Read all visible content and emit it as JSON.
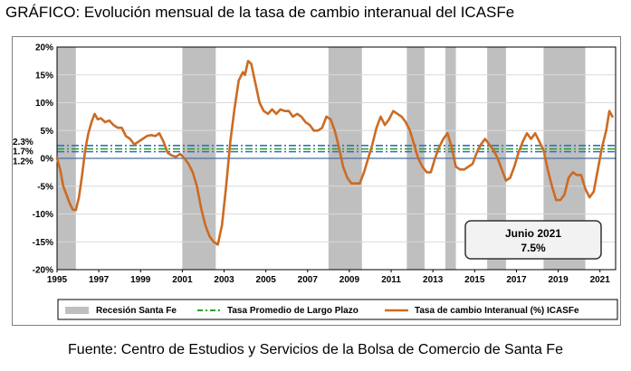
{
  "title": "GRÁFICO: Evolución mensual de la tasa de cambio interanual del ICASFe",
  "source": "Fuente: Centro de Estudios y Servicios de la Bolsa de Comercio de Santa Fe",
  "colors": {
    "series": "#cc6b22",
    "recession": "#bfbfbf",
    "avg_blue": "#2e6fcb",
    "avg_green": "#2ca02c",
    "zero_line": "#4a6fa5"
  },
  "chart_data": {
    "type": "line",
    "title": "",
    "xlabel": "",
    "ylabel": "",
    "xlim": [
      1995.0,
      2021.75
    ],
    "ylim": [
      -20,
      20
    ],
    "y_ticks": [
      20,
      15,
      10,
      5,
      0,
      -5,
      -10,
      -15,
      -20
    ],
    "y_tick_labels": [
      "20%",
      "15%",
      "10%",
      "5%",
      "0%",
      "-5%",
      "-10%",
      "-15%",
      "-20%"
    ],
    "x_ticks": [
      1995,
      1997,
      1999,
      2001,
      2003,
      2005,
      2007,
      2009,
      2011,
      2013,
      2015,
      2017,
      2019,
      2021
    ],
    "x_tick_labels": [
      "1995",
      "1997",
      "1999",
      "2001",
      "2003",
      "2005",
      "2007",
      "2009",
      "2011",
      "2013",
      "2015",
      "2017",
      "2019",
      "2021"
    ],
    "reference_labels": [
      "2.3%",
      "1.7%",
      "1.2%"
    ],
    "reference_lines": [
      2.3,
      1.7,
      1.2
    ],
    "recessions": [
      [
        1995.0,
        1995.9
      ],
      [
        2001.0,
        2002.6
      ],
      [
        2008.0,
        2009.6
      ],
      [
        2011.75,
        2012.6
      ],
      [
        2013.6,
        2014.1
      ],
      [
        2015.6,
        2016.5
      ],
      [
        2018.3,
        2020.3
      ]
    ],
    "series": [
      {
        "name": "Tasa de cambio interanual (%) ICASFe",
        "x": [
          1995.0,
          1995.15,
          1995.3,
          1995.45,
          1995.6,
          1995.75,
          1995.9,
          1996.05,
          1996.2,
          1996.35,
          1996.5,
          1996.65,
          1996.8,
          1996.95,
          1997.1,
          1997.3,
          1997.5,
          1997.7,
          1997.9,
          1998.1,
          1998.3,
          1998.5,
          1998.7,
          1998.9,
          1999.1,
          1999.3,
          1999.5,
          1999.7,
          1999.9,
          2000.1,
          2000.3,
          2000.5,
          2000.7,
          2000.9,
          2001.1,
          2001.3,
          2001.5,
          2001.7,
          2001.9,
          2002.1,
          2002.3,
          2002.5,
          2002.7,
          2002.9,
          2003.1,
          2003.3,
          2003.5,
          2003.7,
          2003.9,
          2004.0,
          2004.15,
          2004.3,
          2004.5,
          2004.7,
          2004.9,
          2005.1,
          2005.3,
          2005.5,
          2005.7,
          2005.9,
          2006.1,
          2006.3,
          2006.5,
          2006.7,
          2006.9,
          2007.1,
          2007.3,
          2007.5,
          2007.7,
          2007.9,
          2008.1,
          2008.3,
          2008.5,
          2008.7,
          2008.9,
          2009.1,
          2009.3,
          2009.5,
          2009.7,
          2009.9,
          2010.1,
          2010.3,
          2010.5,
          2010.7,
          2010.9,
          2011.1,
          2011.3,
          2011.5,
          2011.7,
          2011.9,
          2012.1,
          2012.3,
          2012.5,
          2012.7,
          2012.9,
          2013.1,
          2013.3,
          2013.5,
          2013.7,
          2013.9,
          2014.1,
          2014.3,
          2014.5,
          2014.7,
          2014.9,
          2015.1,
          2015.3,
          2015.5,
          2015.7,
          2015.9,
          2016.1,
          2016.3,
          2016.5,
          2016.7,
          2016.9,
          2017.1,
          2017.3,
          2017.5,
          2017.7,
          2017.9,
          2018.1,
          2018.3,
          2018.5,
          2018.7,
          2018.9,
          2019.1,
          2019.3,
          2019.5,
          2019.7,
          2019.9,
          2020.1,
          2020.3,
          2020.5,
          2020.7,
          2020.9,
          2021.1,
          2021.3,
          2021.45,
          2021.6
        ],
        "y": [
          0.0,
          -2.0,
          -5.0,
          -6.5,
          -8.0,
          -9.2,
          -9.3,
          -7.0,
          -3.0,
          1.5,
          4.5,
          6.5,
          8.0,
          7.0,
          7.2,
          6.5,
          6.8,
          6.0,
          5.5,
          5.5,
          4.0,
          3.5,
          2.5,
          3.0,
          3.5,
          4.0,
          4.2,
          4.0,
          4.5,
          3.0,
          1.0,
          0.5,
          0.3,
          0.8,
          0.0,
          -1.0,
          -2.5,
          -5.0,
          -9.0,
          -12.0,
          -14.0,
          -15.0,
          -15.5,
          -12.0,
          -5.0,
          3.0,
          9.0,
          14.0,
          15.5,
          15.0,
          17.5,
          17.0,
          13.5,
          10.0,
          8.5,
          8.0,
          8.8,
          8.0,
          8.8,
          8.5,
          8.5,
          7.5,
          8.0,
          7.5,
          6.5,
          6.0,
          5.0,
          5.0,
          5.5,
          7.5,
          7.0,
          5.0,
          2.0,
          -1.5,
          -3.5,
          -4.5,
          -4.5,
          -4.5,
          -2.5,
          0.0,
          2.5,
          5.5,
          7.5,
          6.0,
          7.0,
          8.5,
          8.0,
          7.5,
          6.5,
          5.0,
          2.5,
          0.0,
          -1.5,
          -2.5,
          -2.5,
          0.0,
          2.0,
          3.5,
          4.5,
          2.0,
          -1.5,
          -2.0,
          -2.0,
          -1.5,
          -1.0,
          1.0,
          2.5,
          3.5,
          2.5,
          1.5,
          0.0,
          -2.0,
          -4.0,
          -3.5,
          -1.5,
          1.0,
          3.0,
          4.5,
          3.5,
          4.5,
          3.0,
          1.5,
          -2.0,
          -5.0,
          -7.5,
          -7.5,
          -6.5,
          -3.5,
          -2.5,
          -3.0,
          -3.0,
          -5.5,
          -7.0,
          -6.0,
          -2.0,
          2.0,
          5.0,
          8.5,
          7.5
        ]
      }
    ],
    "annotation": {
      "line1": "Junio 2021",
      "line2": "7.5%"
    },
    "legend": {
      "position": "bottom",
      "items": [
        "Recesión Santa Fe",
        "Tasa Promedio de Largo Plazo",
        "Tasa de cambio Interanual (%) ICASFe"
      ]
    }
  }
}
